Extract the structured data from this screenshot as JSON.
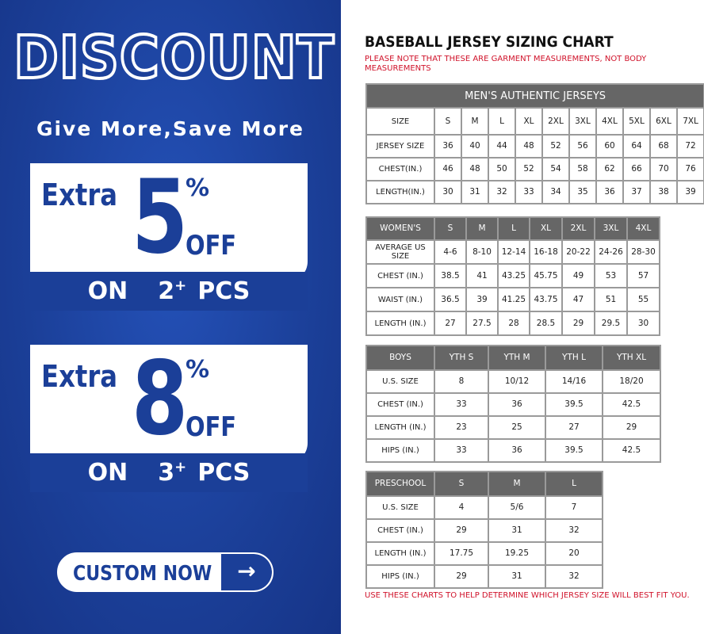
{
  "promo": {
    "title": "DISCOUNT",
    "subtitle": "Give More,Save More",
    "offers": [
      {
        "extra": "Extra",
        "value": "5",
        "percent": "%",
        "off": "OFF",
        "on": "ON",
        "qty": "2",
        "plus": "+",
        "pcs": "PCS"
      },
      {
        "extra": "Extra",
        "value": "8",
        "percent": "%",
        "off": "OFF",
        "on": "ON",
        "qty": "3",
        "plus": "+",
        "pcs": "PCS"
      }
    ],
    "button": {
      "label": "CUSTOM NOW",
      "icon": "arrow-right-icon",
      "arrow": "→"
    },
    "colors": {
      "blue": "#1b3f98",
      "white": "#ffffff"
    }
  },
  "sizing": {
    "title": "BASEBALL JERSEY SIZING CHART",
    "note": "PLEASE NOTE THAT THESE ARE GARMENT MEASUREMENTS, NOT BODY MEASUREMENTS",
    "footer": "USE THESE CHARTS TO HELP DETERMINE WHICH JERSEY SIZE WILL BEST FIT YOU.",
    "colors": {
      "header": "#666666",
      "note": "#d0122a"
    },
    "tables": [
      {
        "caption": "MEN'S AUTHENTIC JERSEYS",
        "header": [
          "SIZE",
          "S",
          "M",
          "L",
          "XL",
          "2XL",
          "3XL",
          "4XL",
          "5XL",
          "6XL",
          "7XL"
        ],
        "header_style": "plain",
        "rows": [
          [
            "JERSEY SIZE",
            "36",
            "40",
            "44",
            "48",
            "52",
            "56",
            "60",
            "64",
            "68",
            "72"
          ],
          [
            "CHEST(IN.)",
            "46",
            "48",
            "50",
            "52",
            "54",
            "58",
            "62",
            "66",
            "70",
            "76"
          ],
          [
            "LENGTH(IN.)",
            "30",
            "31",
            "32",
            "33",
            "34",
            "35",
            "36",
            "37",
            "38",
            "39"
          ]
        ]
      },
      {
        "header": [
          "WOMEN'S",
          "S",
          "M",
          "L",
          "XL",
          "2XL",
          "3XL",
          "4XL"
        ],
        "rows": [
          [
            "AVERAGE US SIZE",
            "4-6",
            "8-10",
            "12-14",
            "16-18",
            "20-22",
            "24-26",
            "28-30"
          ],
          [
            "CHEST (IN.)",
            "38.5",
            "41",
            "43.25",
            "45.75",
            "49",
            "53",
            "57"
          ],
          [
            "WAIST (IN.)",
            "36.5",
            "39",
            "41.25",
            "43.75",
            "47",
            "51",
            "55"
          ],
          [
            "LENGTH (IN.)",
            "27",
            "27.5",
            "28",
            "28.5",
            "29",
            "29.5",
            "30"
          ]
        ]
      },
      {
        "header": [
          "BOYS",
          "YTH S",
          "YTH M",
          "YTH L",
          "YTH XL"
        ],
        "rows": [
          [
            "U.S. SIZE",
            "8",
            "10/12",
            "14/16",
            "18/20"
          ],
          [
            "CHEST (IN.)",
            "33",
            "36",
            "39.5",
            "42.5"
          ],
          [
            "LENGTH (IN.)",
            "23",
            "25",
            "27",
            "29"
          ],
          [
            "HIPS (IN.)",
            "33",
            "36",
            "39.5",
            "42.5"
          ]
        ]
      },
      {
        "header": [
          "PRESCHOOL",
          "S",
          "M",
          "L"
        ],
        "rows": [
          [
            "U.S. SIZE",
            "4",
            "5/6",
            "7"
          ],
          [
            "CHEST (IN.)",
            "29",
            "31",
            "32"
          ],
          [
            "LENGTH (IN.)",
            "17.75",
            "19.25",
            "20"
          ],
          [
            "HIPS (IN.)",
            "29",
            "31",
            "32"
          ]
        ]
      }
    ]
  }
}
